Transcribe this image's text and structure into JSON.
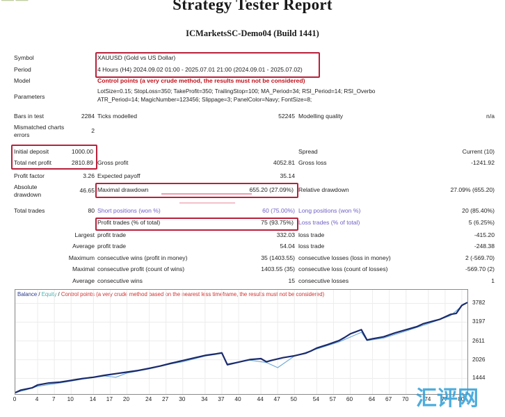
{
  "header": {
    "top_fragment": "——  ——",
    "title": "Strategy Tester Report",
    "subtitle": "ICMarketsSC-Demo04 (Build 1441)"
  },
  "settings": {
    "symbol_label": "Symbol",
    "symbol_value": "XAUUSD (Gold vs US Dollar)",
    "period_label": "Period",
    "period_value": "4 Hours (H4) 2024.09.02 01:00 - 2025.07.01 21:00 (2024.09.01 - 2025.07.02)",
    "model_label": "Model",
    "model_value": "Control points (a very crude method, the results must not be considered)",
    "parameters_label": "Parameters",
    "parameters_line1": "LotSize=0.15; StopLoss=350; TakeProfit=350; TrailingStop=100; MA_Period=34; RSI_Period=14; RSI_Overbo",
    "parameters_line2": "ATR_Period=14; MagicNumber=123456; Slippage=3; PanelColor=Navy; FontSize=8;"
  },
  "stats": {
    "bars_label": "Bars in test",
    "bars_value": "2284",
    "ticks_label": "Ticks modelled",
    "ticks_value": "52245",
    "quality_label": "Modelling quality",
    "quality_value": "n/a",
    "mismatch_label_1": "Mismatched charts",
    "mismatch_label_2": "errors",
    "mismatch_value": "2",
    "deposit_label": "Initial deposit",
    "deposit_value": "1000.00",
    "spread_label": "Spread",
    "spread_value": "Current (10)",
    "netprofit_label": "Total net profit",
    "netprofit_value": "2810.89",
    "grossprofit_label": "Gross profit",
    "grossprofit_value": "4052.81",
    "grossloss_label": "Gross loss",
    "grossloss_value": "-1241.92",
    "pf_label": "Profit factor",
    "pf_value": "3.26",
    "payoff_label": "Expected payoff",
    "payoff_value": "35.14",
    "absdd_label_1": "Absolute",
    "absdd_label_2": "drawdown",
    "absdd_value": "46.65",
    "maxdd_label": "Maximal drawdown",
    "maxdd_value": "655.20 (27.09%)",
    "reldd_label": "Relative drawdown",
    "reldd_value": "27.09% (655.20)",
    "trades_label": "Total trades",
    "trades_value": "80",
    "short_label": "Short positions (won %)",
    "short_value": "60 (75.00%)",
    "long_label": "Long positions (won %)",
    "long_value": "20 (85.40%)",
    "pt_label": "Profit trades (% of total)",
    "pt_value": "75 (93.75%)",
    "lt_label": "Loss trades (% of total)",
    "lt_value": "5 (6.25%)",
    "largest_label": "Largest",
    "largest_pt_label": "profit trade",
    "largest_pt_value": "332.03",
    "largest_lt_label": "loss trade",
    "largest_lt_value": "-415.20",
    "average_label": "Average",
    "average_pt_label": "profit trade",
    "average_pt_value": "54.04",
    "average_lt_label": "loss trade",
    "average_lt_value": "-248.38",
    "maximum_label": "Maximum",
    "max_cw_label": "consecutive wins (profit in money)",
    "max_cw_value": "35 (1403.55)",
    "max_cl_label": "consecutive losses (loss in money)",
    "max_cl_value": "2 (-569.70)",
    "maximal_label": "Maximal",
    "mxl_cp_label": "consecutive profit (count of wins)",
    "mxl_cp_value": "1403.55 (35)",
    "mxl_cl_label": "consecutive loss (count of losses)",
    "mxl_cl_value": "-569.70 (2)",
    "avg2_label": "Average",
    "avg_cw_label": "consecutive wins",
    "avg_cw_value": "15",
    "avg_cl_label": "consecutive losses",
    "avg_cl_value": "1"
  },
  "chart_legend": {
    "balance": "Balance",
    "sep": " / ",
    "equity": "Equity",
    "sep2": " / ",
    "model_note": "Control points (a very crude method based on the nearest less timeframe, the results must not be considered)"
  },
  "watermark": "汇评网",
  "colors": {
    "highlight": "#b8203a",
    "red_text": "#c0101a",
    "balance": "#1a2a6c",
    "equity": "#6aa8d8",
    "legend_balance": "#2a3a8c",
    "legend_equity": "#4ab0b0",
    "legend_model": "#d03030"
  },
  "chart_data": {
    "type": "line",
    "x_ticks": [
      0,
      4,
      7,
      10,
      14,
      17,
      20,
      24,
      27,
      30,
      34,
      37,
      40,
      44,
      47,
      50,
      54,
      57,
      60,
      64,
      67,
      70,
      74,
      77,
      80
    ],
    "x_range": [
      0,
      81
    ],
    "y_ticks": [
      1444,
      2026,
      2611,
      3197,
      3782
    ],
    "y_range": [
      1000,
      3900
    ],
    "series": [
      {
        "name": "Balance",
        "x": [
          0,
          1,
          3,
          4,
          6,
          8,
          10,
          12,
          14,
          16,
          18,
          20,
          22,
          24,
          26,
          28,
          30,
          32,
          34,
          36,
          37,
          38,
          40,
          42,
          44,
          45,
          46,
          48,
          50,
          52,
          53,
          54,
          56,
          58,
          59,
          60,
          62,
          63,
          64,
          66,
          68,
          70,
          72,
          73,
          74,
          76,
          78,
          79,
          80,
          81
        ],
        "y": [
          1000,
          1080,
          1150,
          1240,
          1300,
          1330,
          1380,
          1440,
          1480,
          1540,
          1590,
          1640,
          1690,
          1760,
          1830,
          1920,
          2000,
          2080,
          2160,
          2210,
          2240,
          1870,
          1950,
          2030,
          2060,
          1960,
          2010,
          2090,
          2150,
          2230,
          2300,
          2390,
          2500,
          2620,
          2720,
          2830,
          2960,
          2640,
          2680,
          2740,
          2860,
          2960,
          3060,
          3140,
          3190,
          3280,
          3440,
          3470,
          3720,
          3810
        ]
      },
      {
        "name": "Equity",
        "x": [
          0,
          2,
          4,
          8,
          12,
          16,
          18,
          20,
          24,
          28,
          30,
          34,
          37,
          38,
          42,
          45,
          47,
          50,
          54,
          58,
          62,
          63,
          66,
          70,
          74,
          78,
          80,
          81
        ],
        "y": [
          1000,
          1090,
          1200,
          1300,
          1420,
          1520,
          1480,
          1610,
          1740,
          1900,
          1960,
          2140,
          2220,
          1900,
          2010,
          1940,
          1780,
          2140,
          2360,
          2580,
          2880,
          2620,
          2700,
          2920,
          3150,
          3400,
          3700,
          3800
        ]
      }
    ],
    "legend": [
      "Balance",
      "Equity"
    ],
    "grid": true
  }
}
